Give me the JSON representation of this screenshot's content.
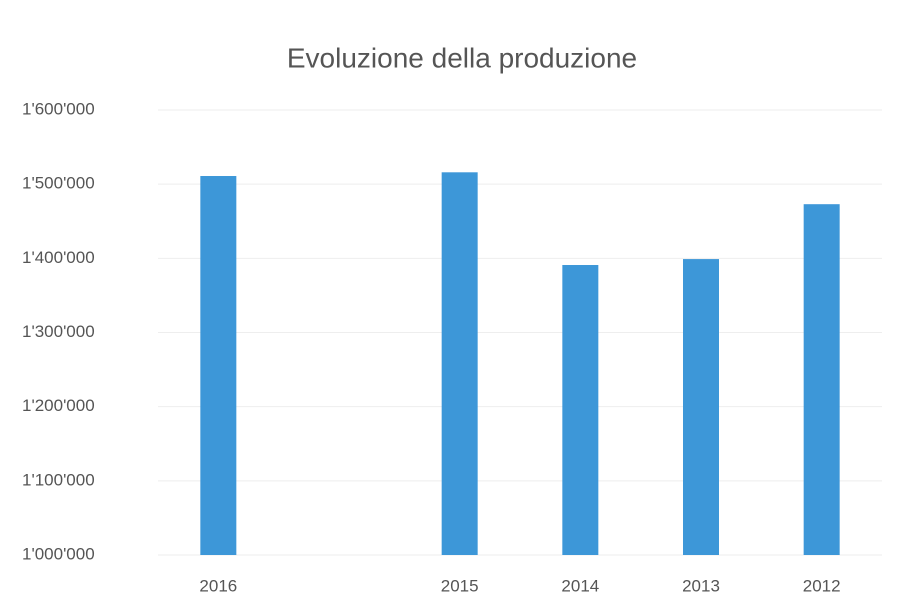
{
  "chart_data": {
    "type": "bar",
    "title": "Evoluzione della produzione",
    "categories": [
      "2016",
      null,
      "2015",
      "2014",
      "2013",
      "2012"
    ],
    "values": [
      1511000,
      null,
      1516000,
      1391000,
      1399000,
      1473000
    ],
    "color": "#3d97d8",
    "ylim": [
      1000000,
      1600000
    ],
    "yticks": [
      {
        "value": 1000000,
        "label": "1'000'000"
      },
      {
        "value": 1100000,
        "label": "1'100'000"
      },
      {
        "value": 1200000,
        "label": "1'200'000"
      },
      {
        "value": 1300000,
        "label": "1'300'000"
      },
      {
        "value": 1400000,
        "label": "1'400'000"
      },
      {
        "value": 1500000,
        "label": "1'500'000"
      },
      {
        "value": 1600000,
        "label": "1'600'000"
      }
    ],
    "grid": true
  }
}
